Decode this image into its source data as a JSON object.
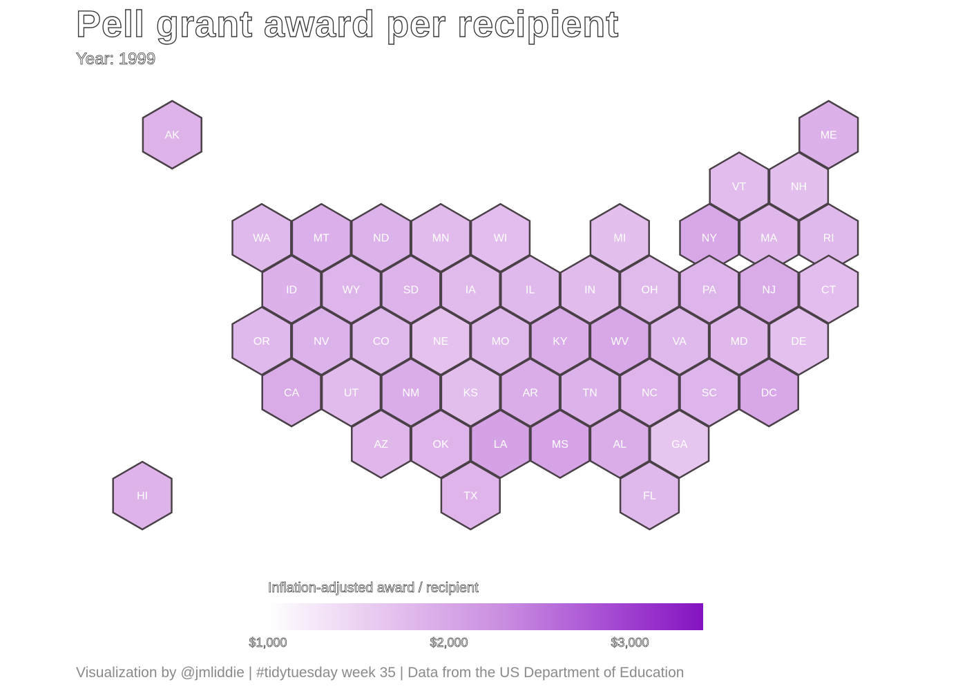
{
  "title": "Pell grant award per recipient",
  "subtitle": "Year: 1999",
  "caption": "Visualization by @jmliddie | #tidytuesday week 35 | Data from the US Department of Education",
  "legend": {
    "title": "Inflation-adjusted award / recipient",
    "ticks": [
      "$1,000",
      "$2,000",
      "$3,000"
    ],
    "tick_values": [
      1000,
      2000,
      3000
    ],
    "range": [
      1000,
      3400
    ],
    "color_low": "#ffffff",
    "color_high": "#8413c0"
  },
  "colors": {
    "hex_stroke": "#4a4047",
    "label": "#ffffff"
  },
  "chart_data": {
    "type": "heatmap",
    "title": "Pell grant award per recipient",
    "subtitle": "Year: 1999",
    "legend_title": "Inflation-adjusted award / recipient",
    "cells": [
      {
        "state": "AK",
        "row": 0,
        "col": 0,
        "value": 1850
      },
      {
        "state": "ME",
        "row": 0,
        "col": 22,
        "value": 1880
      },
      {
        "state": "VT",
        "row": 1,
        "col": 19,
        "value": 1750
      },
      {
        "state": "NH",
        "row": 1,
        "col": 21,
        "value": 1720
      },
      {
        "state": "WA",
        "row": 2,
        "col": 3,
        "value": 1800
      },
      {
        "state": "MT",
        "row": 2,
        "col": 5,
        "value": 1900
      },
      {
        "state": "ND",
        "row": 2,
        "col": 7,
        "value": 1870
      },
      {
        "state": "MN",
        "row": 2,
        "col": 9,
        "value": 1760
      },
      {
        "state": "WI",
        "row": 2,
        "col": 11,
        "value": 1740
      },
      {
        "state": "MI",
        "row": 2,
        "col": 15,
        "value": 1720
      },
      {
        "state": "NY",
        "row": 2,
        "col": 18,
        "value": 2000
      },
      {
        "state": "MA",
        "row": 2,
        "col": 20,
        "value": 1810
      },
      {
        "state": "RI",
        "row": 2,
        "col": 22,
        "value": 1800
      },
      {
        "state": "ID",
        "row": 3,
        "col": 4,
        "value": 1880
      },
      {
        "state": "WY",
        "row": 3,
        "col": 6,
        "value": 1830
      },
      {
        "state": "SD",
        "row": 3,
        "col": 8,
        "value": 1850
      },
      {
        "state": "IA",
        "row": 3,
        "col": 10,
        "value": 1770
      },
      {
        "state": "IL",
        "row": 3,
        "col": 12,
        "value": 1790
      },
      {
        "state": "IN",
        "row": 3,
        "col": 14,
        "value": 1760
      },
      {
        "state": "OH",
        "row": 3,
        "col": 16,
        "value": 1770
      },
      {
        "state": "PA",
        "row": 3,
        "col": 18,
        "value": 1830
      },
      {
        "state": "NJ",
        "row": 3,
        "col": 20,
        "value": 1940
      },
      {
        "state": "CT",
        "row": 3,
        "col": 22,
        "value": 1740
      },
      {
        "state": "OR",
        "row": 4,
        "col": 3,
        "value": 1790
      },
      {
        "state": "NV",
        "row": 4,
        "col": 5,
        "value": 1870
      },
      {
        "state": "CO",
        "row": 4,
        "col": 7,
        "value": 1790
      },
      {
        "state": "NE",
        "row": 4,
        "col": 9,
        "value": 1680
      },
      {
        "state": "MO",
        "row": 4,
        "col": 11,
        "value": 1790
      },
      {
        "state": "KY",
        "row": 4,
        "col": 13,
        "value": 1930
      },
      {
        "state": "WV",
        "row": 4,
        "col": 15,
        "value": 1990
      },
      {
        "state": "VA",
        "row": 4,
        "col": 17,
        "value": 1800
      },
      {
        "state": "MD",
        "row": 4,
        "col": 19,
        "value": 1810
      },
      {
        "state": "DE",
        "row": 4,
        "col": 21,
        "value": 1700
      },
      {
        "state": "CA",
        "row": 5,
        "col": 4,
        "value": 1940
      },
      {
        "state": "UT",
        "row": 5,
        "col": 6,
        "value": 1760
      },
      {
        "state": "NM",
        "row": 5,
        "col": 8,
        "value": 1930
      },
      {
        "state": "KS",
        "row": 5,
        "col": 10,
        "value": 1730
      },
      {
        "state": "AR",
        "row": 5,
        "col": 12,
        "value": 1920
      },
      {
        "state": "TN",
        "row": 5,
        "col": 14,
        "value": 1870
      },
      {
        "state": "NC",
        "row": 5,
        "col": 16,
        "value": 1840
      },
      {
        "state": "SC",
        "row": 5,
        "col": 18,
        "value": 1830
      },
      {
        "state": "DC",
        "row": 5,
        "col": 20,
        "value": 1990
      },
      {
        "state": "AZ",
        "row": 6,
        "col": 7,
        "value": 1810
      },
      {
        "state": "OK",
        "row": 6,
        "col": 9,
        "value": 1840
      },
      {
        "state": "LA",
        "row": 6,
        "col": 11,
        "value": 2050
      },
      {
        "state": "MS",
        "row": 6,
        "col": 13,
        "value": 2040
      },
      {
        "state": "AL",
        "row": 6,
        "col": 15,
        "value": 1920
      },
      {
        "state": "GA",
        "row": 6,
        "col": 17,
        "value": 1640
      },
      {
        "state": "HI",
        "row": 7,
        "col": -1,
        "value": 1860
      },
      {
        "state": "TX",
        "row": 7,
        "col": 10,
        "value": 1840
      },
      {
        "state": "FL",
        "row": 7,
        "col": 16,
        "value": 1800
      }
    ]
  }
}
